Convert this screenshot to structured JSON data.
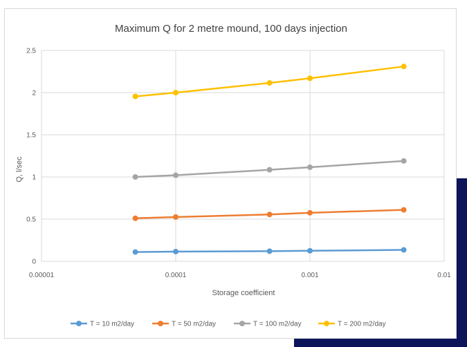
{
  "chart_data": {
    "type": "line",
    "title": "Maximum Q  for 2 metre mound, 100 days injection",
    "xlabel": "Storage coefficient",
    "ylabel": "Q,  l/sec",
    "x_scale": "log",
    "xlim": [
      1e-05,
      0.01
    ],
    "ylim": [
      0,
      2.5
    ],
    "x_ticks": [
      1e-05,
      0.0001,
      0.001,
      0.01
    ],
    "x_tick_labels": [
      "0.00001",
      "0.0001",
      "0.001",
      "0.01"
    ],
    "y_ticks": [
      0,
      0.5,
      1,
      1.5,
      2,
      2.5
    ],
    "y_tick_labels": [
      "0",
      "0.5",
      "1",
      "1.5",
      "2",
      "2.5"
    ],
    "grid": true,
    "legend_position": "bottom",
    "x": [
      5e-05,
      0.0001,
      0.0005,
      0.001,
      0.005
    ],
    "series": [
      {
        "name": "T = 10 m2/day",
        "color": "#5b9bd5",
        "values": [
          0.11,
          0.115,
          0.12,
          0.125,
          0.135
        ]
      },
      {
        "name": "T = 50 m2/day",
        "color": "#ed7d31",
        "values": [
          0.51,
          0.525,
          0.555,
          0.575,
          0.61
        ]
      },
      {
        "name": "T = 100 m2/day",
        "color": "#a5a5a5",
        "values": [
          1.0,
          1.02,
          1.085,
          1.115,
          1.19
        ]
      },
      {
        "name": "T = 200 m2/day",
        "color": "#ffc000",
        "values": [
          1.955,
          2.0,
          2.115,
          2.17,
          2.31
        ]
      }
    ]
  }
}
